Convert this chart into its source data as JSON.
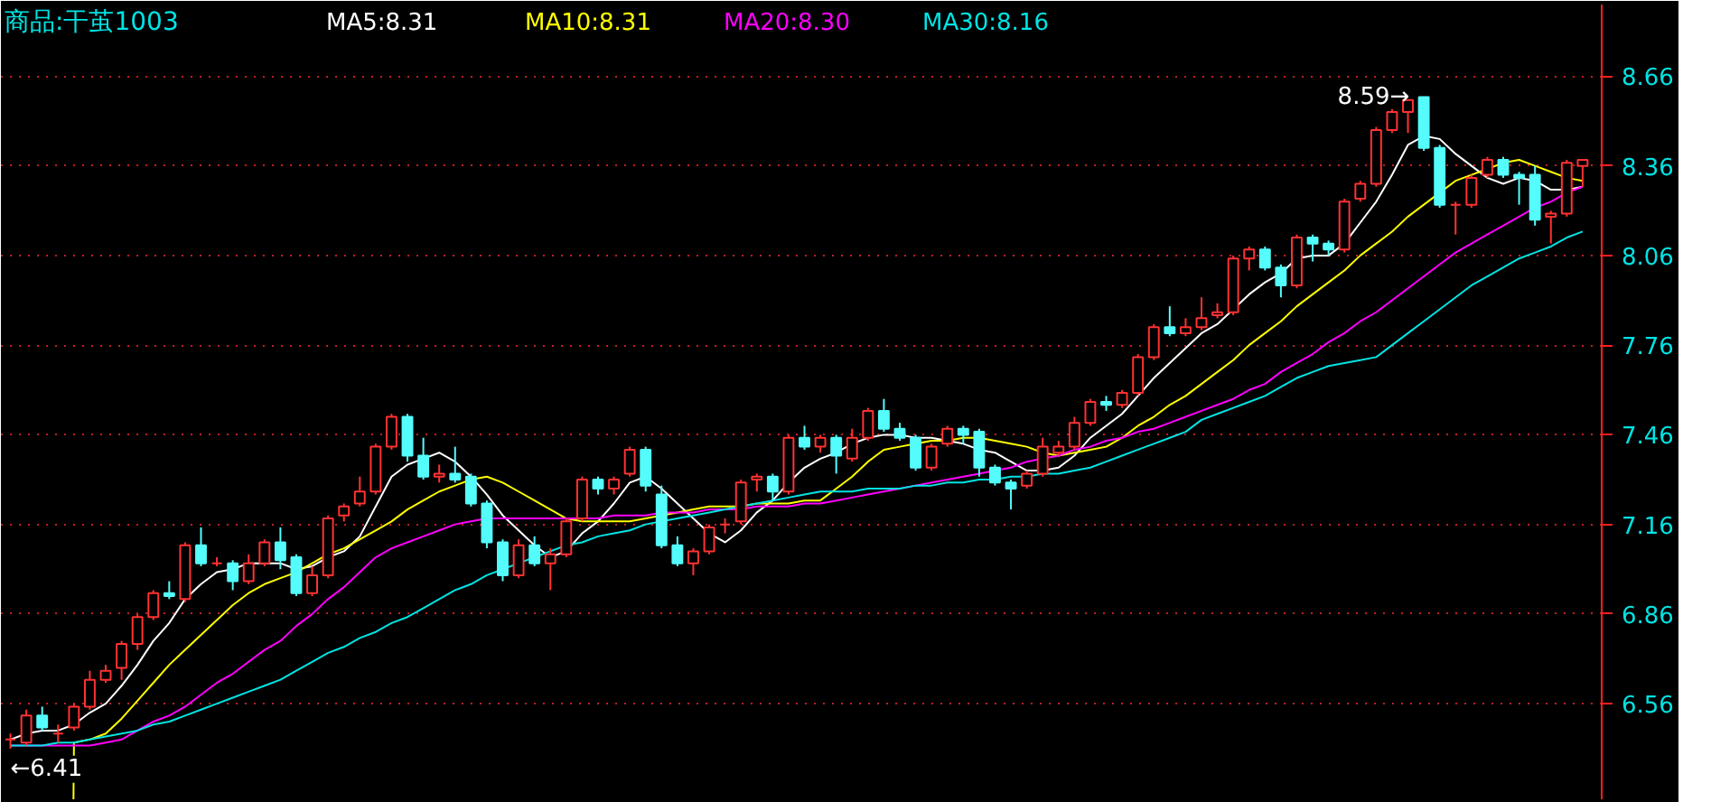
{
  "chart_data": {
    "type": "candlestick",
    "title": "商品:干茧1003",
    "categories": [
      null,
      null,
      null,
      null,
      null,
      null,
      null,
      null,
      null,
      null,
      null,
      null,
      null,
      null,
      null,
      null,
      null,
      null,
      null,
      null,
      null,
      null,
      null,
      null,
      null,
      null,
      null,
      null,
      null,
      null,
      null,
      null,
      null,
      null,
      null,
      null,
      null,
      null,
      null,
      null,
      null,
      null,
      null,
      null,
      null,
      null,
      null,
      null,
      null,
      null,
      null,
      null,
      null,
      null,
      null,
      null,
      null,
      null,
      null,
      null,
      null,
      null,
      null,
      null,
      null,
      null,
      null,
      null,
      null,
      null,
      null,
      null,
      null,
      null,
      null,
      null,
      null,
      null,
      null,
      null,
      null,
      null,
      null,
      null,
      null,
      null,
      null,
      null,
      null,
      null,
      null,
      null,
      null,
      null,
      null,
      null,
      null,
      null,
      null,
      null
    ],
    "ohlc": [
      [
        6.44,
        6.46,
        6.41,
        6.44
      ],
      [
        6.43,
        6.54,
        6.42,
        6.52
      ],
      [
        6.52,
        6.55,
        6.47,
        6.48
      ],
      [
        6.46,
        6.49,
        6.43,
        6.46
      ],
      [
        6.48,
        6.56,
        6.47,
        6.55
      ],
      [
        6.55,
        6.67,
        6.54,
        6.64
      ],
      [
        6.64,
        6.69,
        6.63,
        6.67
      ],
      [
        6.68,
        6.77,
        6.64,
        6.76
      ],
      [
        6.76,
        6.86,
        6.74,
        6.85
      ],
      [
        6.85,
        6.94,
        6.84,
        6.93
      ],
      [
        6.93,
        6.97,
        6.91,
        6.92
      ],
      [
        6.91,
        7.1,
        6.9,
        7.09
      ],
      [
        7.09,
        7.15,
        7.02,
        7.03
      ],
      [
        7.03,
        7.05,
        7.02,
        7.03
      ],
      [
        7.03,
        7.04,
        6.94,
        6.97
      ],
      [
        6.97,
        7.06,
        6.96,
        7.03
      ],
      [
        7.03,
        7.11,
        7.02,
        7.1
      ],
      [
        7.1,
        7.15,
        7.01,
        7.04
      ],
      [
        7.05,
        7.06,
        6.92,
        6.93
      ],
      [
        6.93,
        7.02,
        6.92,
        6.99
      ],
      [
        6.99,
        7.19,
        6.98,
        7.18
      ],
      [
        7.19,
        7.23,
        7.17,
        7.22
      ],
      [
        7.23,
        7.32,
        7.22,
        7.27
      ],
      [
        7.27,
        7.43,
        7.26,
        7.42
      ],
      [
        7.42,
        7.53,
        7.41,
        7.52
      ],
      [
        7.52,
        7.53,
        7.37,
        7.39
      ],
      [
        7.39,
        7.45,
        7.31,
        7.32
      ],
      [
        7.32,
        7.36,
        7.3,
        7.33
      ],
      [
        7.33,
        7.42,
        7.3,
        7.31
      ],
      [
        7.32,
        7.33,
        7.22,
        7.23
      ],
      [
        7.23,
        7.24,
        7.08,
        7.1
      ],
      [
        7.1,
        7.11,
        6.97,
        6.99
      ],
      [
        6.99,
        7.11,
        6.98,
        7.09
      ],
      [
        7.09,
        7.12,
        7.02,
        7.03
      ],
      [
        7.03,
        7.08,
        6.94,
        7.06
      ],
      [
        7.06,
        7.18,
        7.05,
        7.17
      ],
      [
        7.18,
        7.32,
        7.17,
        7.31
      ],
      [
        7.31,
        7.32,
        7.26,
        7.28
      ],
      [
        7.28,
        7.32,
        7.26,
        7.31
      ],
      [
        7.33,
        7.42,
        7.32,
        7.41
      ],
      [
        7.41,
        7.42,
        7.27,
        7.29
      ],
      [
        7.26,
        7.29,
        7.08,
        7.09
      ],
      [
        7.09,
        7.12,
        7.02,
        7.03
      ],
      [
        7.03,
        7.08,
        6.99,
        7.07
      ],
      [
        7.07,
        7.16,
        7.06,
        7.15
      ],
      [
        7.16,
        7.18,
        7.13,
        7.16
      ],
      [
        7.17,
        7.31,
        7.16,
        7.3
      ],
      [
        7.31,
        7.33,
        7.27,
        7.32
      ],
      [
        7.32,
        7.33,
        7.24,
        7.27
      ],
      [
        7.27,
        7.46,
        7.26,
        7.45
      ],
      [
        7.45,
        7.49,
        7.41,
        7.42
      ],
      [
        7.42,
        7.46,
        7.4,
        7.45
      ],
      [
        7.45,
        7.46,
        7.33,
        7.39
      ],
      [
        7.38,
        7.48,
        7.37,
        7.45
      ],
      [
        7.45,
        7.55,
        7.44,
        7.54
      ],
      [
        7.54,
        7.58,
        7.47,
        7.48
      ],
      [
        7.48,
        7.5,
        7.44,
        7.45
      ],
      [
        7.45,
        7.46,
        7.34,
        7.35
      ],
      [
        7.35,
        7.43,
        7.34,
        7.42
      ],
      [
        7.43,
        7.49,
        7.42,
        7.48
      ],
      [
        7.48,
        7.49,
        7.43,
        7.46
      ],
      [
        7.47,
        7.48,
        7.32,
        7.35
      ],
      [
        7.35,
        7.36,
        7.29,
        7.3
      ],
      [
        7.3,
        7.31,
        7.21,
        7.28
      ],
      [
        7.29,
        7.34,
        7.28,
        7.33
      ],
      [
        7.33,
        7.45,
        7.32,
        7.42
      ],
      [
        7.4,
        7.44,
        7.39,
        7.42
      ],
      [
        7.42,
        7.52,
        7.41,
        7.5
      ],
      [
        7.5,
        7.58,
        7.49,
        7.57
      ],
      [
        7.57,
        7.59,
        7.54,
        7.56
      ],
      [
        7.56,
        7.61,
        7.55,
        7.6
      ],
      [
        7.6,
        7.73,
        7.59,
        7.72
      ],
      [
        7.72,
        7.83,
        7.71,
        7.82
      ],
      [
        7.82,
        7.89,
        7.79,
        7.8
      ],
      [
        7.8,
        7.85,
        7.79,
        7.82
      ],
      [
        7.82,
        7.92,
        7.81,
        7.85
      ],
      [
        7.86,
        7.9,
        7.85,
        7.87
      ],
      [
        7.87,
        8.06,
        7.86,
        8.05
      ],
      [
        8.05,
        8.09,
        8.01,
        8.08
      ],
      [
        8.08,
        8.09,
        8.01,
        8.02
      ],
      [
        8.02,
        8.03,
        7.92,
        7.96
      ],
      [
        7.96,
        8.13,
        7.95,
        8.12
      ],
      [
        8.12,
        8.13,
        8.04,
        8.1
      ],
      [
        8.1,
        8.11,
        8.06,
        8.08
      ],
      [
        8.08,
        8.25,
        8.07,
        8.24
      ],
      [
        8.25,
        8.31,
        8.24,
        8.3
      ],
      [
        8.3,
        8.49,
        8.29,
        8.48
      ],
      [
        8.48,
        8.55,
        8.47,
        8.54
      ],
      [
        8.54,
        8.58,
        8.47,
        8.58
      ],
      [
        8.59,
        8.59,
        8.41,
        8.42
      ],
      [
        8.42,
        8.43,
        8.22,
        8.23
      ],
      [
        8.23,
        8.24,
        8.13,
        8.23
      ],
      [
        8.23,
        8.33,
        8.22,
        8.32
      ],
      [
        8.33,
        8.39,
        8.32,
        8.38
      ],
      [
        8.38,
        8.39,
        8.32,
        8.33
      ],
      [
        8.33,
        8.34,
        8.23,
        8.32
      ],
      [
        8.33,
        8.36,
        8.16,
        8.18
      ],
      [
        8.19,
        8.21,
        8.1,
        8.2
      ],
      [
        8.2,
        8.38,
        8.19,
        8.37
      ],
      [
        8.36,
        8.38,
        8.29,
        8.38
      ]
    ],
    "colors": [
      "#ff3232",
      "#ff3232",
      "#54fcfc",
      "#ff3232",
      "#ff3232",
      "#ff3232",
      "#ff3232",
      "#ff3232",
      "#ff3232",
      "#ff3232",
      "#54fcfc",
      "#ff3232",
      "#54fcfc",
      "#ff3232",
      "#54fcfc",
      "#ff3232",
      "#ff3232",
      "#54fcfc",
      "#54fcfc",
      "#ff3232",
      "#ff3232",
      "#ff3232",
      "#ff3232",
      "#ff3232",
      "#ff3232",
      "#54fcfc",
      "#54fcfc",
      "#ff3232",
      "#54fcfc",
      "#54fcfc",
      "#54fcfc",
      "#54fcfc",
      "#ff3232",
      "#54fcfc",
      "#ff3232",
      "#ff3232",
      "#ff3232",
      "#54fcfc",
      "#ff3232",
      "#ff3232",
      "#54fcfc",
      "#54fcfc",
      "#54fcfc",
      "#ff3232",
      "#ff3232",
      "#ff3232",
      "#ff3232",
      "#ff3232",
      "#54fcfc",
      "#ff3232",
      "#54fcfc",
      "#ff3232",
      "#54fcfc",
      "#ff3232",
      "#ff3232",
      "#54fcfc",
      "#54fcfc",
      "#54fcfc",
      "#ff3232",
      "#ff3232",
      "#54fcfc",
      "#54fcfc",
      "#54fcfc",
      "#54fcfc",
      "#ff3232",
      "#ff3232",
      "#ff3232",
      "#ff3232",
      "#ff3232",
      "#54fcfc",
      "#ff3232",
      "#ff3232",
      "#ff3232",
      "#54fcfc",
      "#ff3232",
      "#ff3232",
      "#ff3232",
      "#ff3232",
      "#ff3232",
      "#54fcfc",
      "#54fcfc",
      "#ff3232",
      "#54fcfc",
      "#54fcfc",
      "#ff3232",
      "#ff3232",
      "#ff3232",
      "#ff3232",
      "#ff3232",
      "#54fcfc",
      "#54fcfc",
      "#ff3232",
      "#ff3232",
      "#ff3232",
      "#54fcfc",
      "#54fcfc",
      "#54fcfc",
      "#ff3232",
      "#ff3232",
      "#ff3232"
    ],
    "series": [
      {
        "name": "MA5:8.31",
        "type": "line",
        "color": "#ffffff",
        "values": [
          6.44,
          6.46,
          6.47,
          6.47,
          6.49,
          6.53,
          6.56,
          6.62,
          6.69,
          6.77,
          6.83,
          6.91,
          6.96,
          7.0,
          7.01,
          7.03,
          7.03,
          7.03,
          7.01,
          7.02,
          7.05,
          7.07,
          7.12,
          7.22,
          7.32,
          7.36,
          7.38,
          7.4,
          7.37,
          7.32,
          7.26,
          7.19,
          7.14,
          7.09,
          7.05,
          7.07,
          7.13,
          7.17,
          7.23,
          7.3,
          7.32,
          7.28,
          7.23,
          7.18,
          7.13,
          7.1,
          7.14,
          7.2,
          7.24,
          7.3,
          7.35,
          7.38,
          7.4,
          7.43,
          7.45,
          7.46,
          7.46,
          7.45,
          7.45,
          7.44,
          7.43,
          7.41,
          7.4,
          7.37,
          7.34,
          7.34,
          7.35,
          7.39,
          7.45,
          7.49,
          7.53,
          7.59,
          7.65,
          7.7,
          7.75,
          7.8,
          7.83,
          7.88,
          7.93,
          7.97,
          8.0,
          8.05,
          8.06,
          8.06,
          8.1,
          8.17,
          8.24,
          8.33,
          8.43,
          8.46,
          8.45,
          8.4,
          8.36,
          8.32,
          8.3,
          8.32,
          8.31,
          8.28,
          8.28,
          8.29
        ]
      },
      {
        "name": "MA10:8.31",
        "type": "line",
        "color": "#ffff00",
        "values": [
          null,
          null,
          null,
          null,
          6.43,
          6.44,
          6.46,
          6.51,
          6.57,
          6.63,
          6.69,
          6.74,
          6.79,
          6.84,
          6.89,
          6.93,
          6.96,
          6.98,
          7.0,
          7.03,
          7.06,
          7.08,
          7.11,
          7.14,
          7.17,
          7.21,
          7.24,
          7.27,
          7.29,
          7.31,
          7.32,
          7.3,
          7.27,
          7.24,
          7.21,
          7.18,
          7.17,
          7.17,
          7.17,
          7.17,
          7.18,
          7.19,
          7.2,
          7.21,
          7.22,
          7.22,
          7.22,
          7.23,
          7.23,
          7.23,
          7.24,
          7.24,
          7.28,
          7.32,
          7.37,
          7.41,
          7.42,
          7.43,
          7.44,
          7.44,
          7.45,
          7.45,
          7.44,
          7.43,
          7.42,
          7.4,
          7.39,
          7.4,
          7.41,
          7.42,
          7.45,
          7.49,
          7.52,
          7.56,
          7.59,
          7.63,
          7.67,
          7.71,
          7.76,
          7.8,
          7.84,
          7.89,
          7.93,
          7.97,
          8.01,
          8.06,
          8.1,
          8.14,
          8.19,
          8.23,
          8.27,
          8.31,
          8.33,
          8.35,
          8.37,
          8.38,
          8.36,
          8.34,
          8.32,
          8.31
        ]
      },
      {
        "name": "MA20:8.30",
        "type": "line",
        "color": "#ff00ff",
        "values": [
          6.42,
          6.42,
          6.42,
          6.42,
          6.42,
          6.42,
          6.43,
          6.44,
          6.47,
          6.5,
          6.52,
          6.55,
          6.59,
          6.63,
          6.66,
          6.7,
          6.74,
          6.77,
          6.82,
          6.86,
          6.91,
          6.95,
          7.0,
          7.05,
          7.08,
          7.1,
          7.12,
          7.14,
          7.16,
          7.17,
          7.18,
          7.18,
          7.18,
          7.18,
          7.18,
          7.18,
          7.18,
          7.18,
          7.19,
          7.19,
          7.19,
          7.2,
          7.2,
          7.2,
          7.21,
          7.21,
          7.21,
          7.22,
          7.22,
          7.22,
          7.23,
          7.23,
          7.24,
          7.25,
          7.26,
          7.27,
          7.28,
          7.29,
          7.3,
          7.31,
          7.32,
          7.33,
          7.34,
          7.35,
          7.37,
          7.38,
          7.39,
          7.41,
          7.42,
          7.44,
          7.45,
          7.47,
          7.48,
          7.5,
          7.52,
          7.54,
          7.56,
          7.58,
          7.61,
          7.63,
          7.67,
          7.7,
          7.73,
          7.77,
          7.8,
          7.84,
          7.87,
          7.91,
          7.95,
          7.99,
          8.03,
          8.07,
          8.1,
          8.13,
          8.16,
          8.19,
          8.22,
          8.24,
          8.27,
          8.29
        ]
      },
      {
        "name": "MA30:8.16",
        "type": "line",
        "color": "#00e4e4",
        "values": [
          6.42,
          6.42,
          6.42,
          6.43,
          6.43,
          6.44,
          6.45,
          6.46,
          6.47,
          6.49,
          6.5,
          6.52,
          6.54,
          6.56,
          6.58,
          6.6,
          6.62,
          6.64,
          6.67,
          6.7,
          6.73,
          6.75,
          6.78,
          6.8,
          6.83,
          6.85,
          6.88,
          6.91,
          6.94,
          6.96,
          6.99,
          7.01,
          7.03,
          7.05,
          7.07,
          7.09,
          7.1,
          7.12,
          7.13,
          7.14,
          7.16,
          7.17,
          7.18,
          7.19,
          7.2,
          7.21,
          7.22,
          7.23,
          7.24,
          7.25,
          7.26,
          7.27,
          7.27,
          7.27,
          7.28,
          7.28,
          7.28,
          7.29,
          7.29,
          7.3,
          7.3,
          7.31,
          7.31,
          7.32,
          7.32,
          7.33,
          7.33,
          7.34,
          7.35,
          7.37,
          7.39,
          7.41,
          7.43,
          7.45,
          7.47,
          7.51,
          7.53,
          7.55,
          7.57,
          7.59,
          7.62,
          7.65,
          7.67,
          7.69,
          7.7,
          7.71,
          7.72,
          7.76,
          7.8,
          7.84,
          7.88,
          7.92,
          7.96,
          7.99,
          8.02,
          8.05,
          8.07,
          8.09,
          8.12,
          8.14
        ]
      }
    ],
    "annotations": [
      "8.59→",
      "←6.41"
    ],
    "ylim": [
      6.24,
      8.9
    ],
    "yticks": [
      6.56,
      6.86,
      7.16,
      7.46,
      7.76,
      8.06,
      8.36,
      8.66
    ],
    "tick_labels": "y",
    "grid": "y",
    "legend": "top"
  }
}
